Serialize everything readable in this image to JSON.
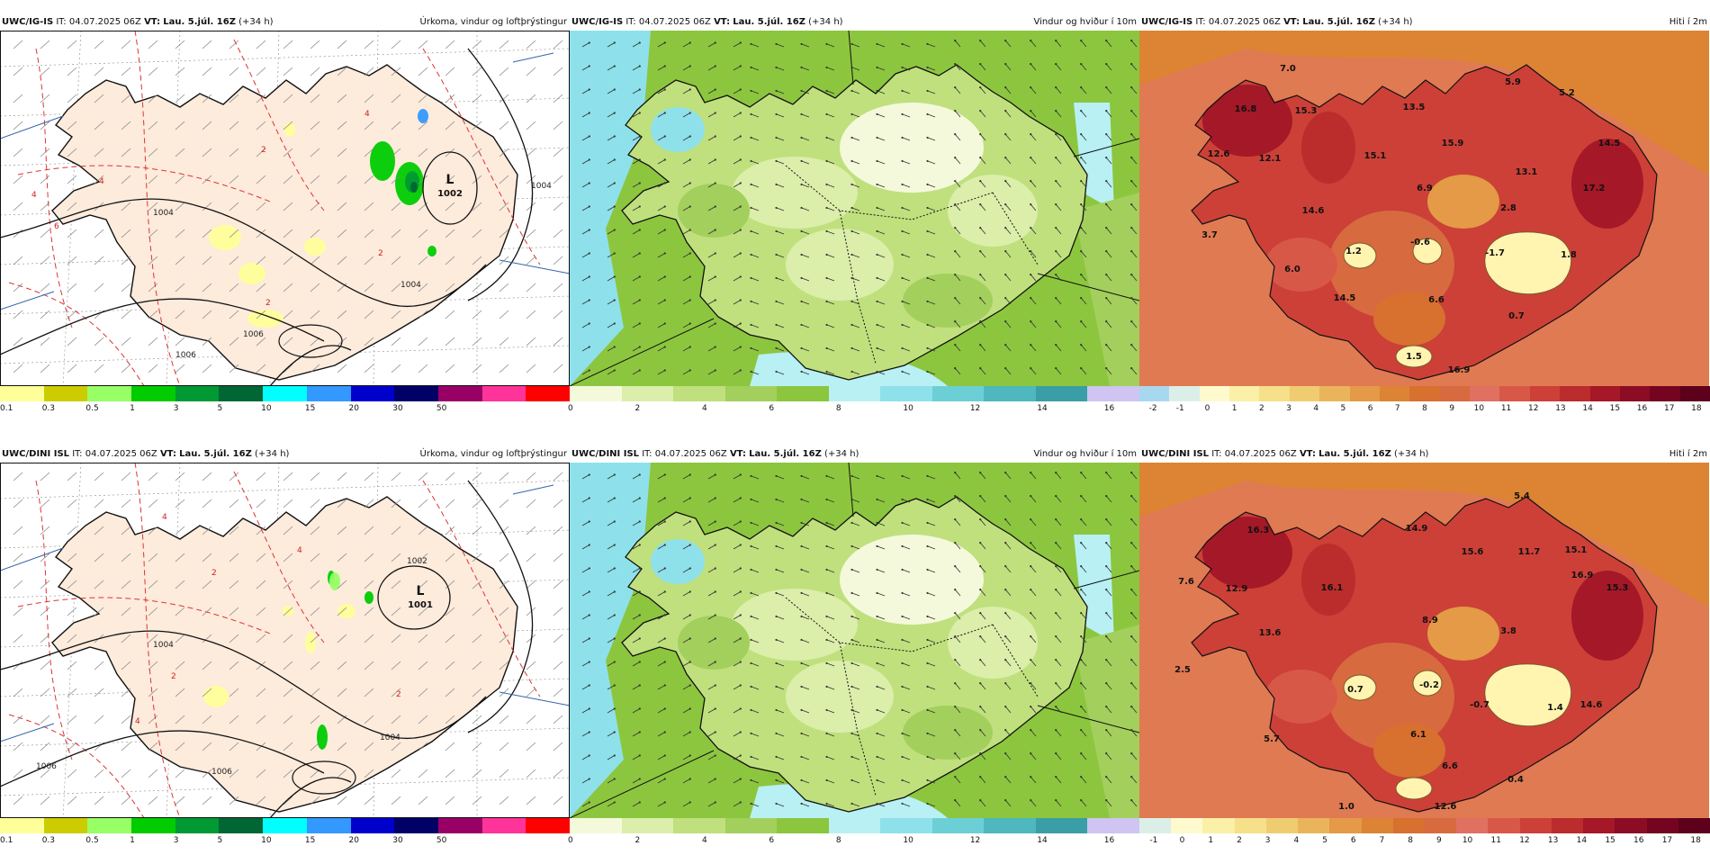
{
  "panels": [
    {
      "id": "p1",
      "model": "UWC/IG-IS",
      "it_label": "IT:",
      "it": "04.07.2025 06Z",
      "vt_label": "VT:",
      "vt": "Lau. 5.júl. 16Z",
      "lead": "(+34 h)",
      "title": "Úrkoma, vindur og loftþrýstingur",
      "map_kind": "precip",
      "scale": {
        "colors": [
          "#ffff99",
          "#cccc00",
          "#99ff66",
          "#00cc00",
          "#009933",
          "#006633",
          "#00ffff",
          "#3399ff",
          "#0000cc",
          "#000066",
          "#990066",
          "#ff3399",
          "#ff0000"
        ],
        "ticks": [
          "0.1",
          "0.3",
          "0.5",
          "1",
          "3",
          "5",
          "10",
          "15",
          "20",
          "30",
          "50"
        ]
      },
      "isobar_labels": [
        "1004",
        "1006",
        "1004",
        "1006",
        "1004"
      ],
      "lows": [
        {
          "letter": "L",
          "value": "1002"
        }
      ],
      "contour_labels": [
        "4",
        "2",
        "2",
        "4",
        "6",
        "4",
        "2"
      ],
      "values": []
    },
    {
      "id": "p2",
      "model": "UWC/IG-IS",
      "it_label": "IT:",
      "it": "04.07.2025 06Z",
      "vt_label": "VT:",
      "vt": "Lau. 5.júl. 16Z",
      "lead": "(+34 h)",
      "title": "Vindur og hviður í 10m",
      "map_kind": "wind",
      "scale": {
        "colors": [
          "#f4f9dc",
          "#dbeeaa",
          "#c0e07e",
          "#a3cf5c",
          "#8cc63f",
          "#b8f0f4",
          "#8ee1ea",
          "#6ccfd6",
          "#4fb8bf",
          "#3a9ea6",
          "#cfc4f2"
        ],
        "ticks": [
          "0",
          "2",
          "4",
          "6",
          "8",
          "10",
          "12",
          "14",
          "16"
        ]
      },
      "values": []
    },
    {
      "id": "p3",
      "model": "UWC/IG-IS",
      "it_label": "IT:",
      "it": "04.07.2025 06Z",
      "vt_label": "VT:",
      "vt": "Lau. 5.júl. 16Z",
      "lead": "(+34 h)",
      "title": "Hiti í 2m",
      "map_kind": "temp",
      "scale": {
        "colors": [
          "#a8d8f0",
          "#dceee8",
          "#fffacd",
          "#fbf0a8",
          "#f6e08a",
          "#f0cc70",
          "#eab55a",
          "#e49a46",
          "#dc8434",
          "#d87030",
          "#d86a40",
          "#e07060",
          "#d85848",
          "#cc4038",
          "#bb2c2c",
          "#a41828",
          "#8c0c24",
          "#740420",
          "#5c001c"
        ],
        "ticks": [
          "-2",
          "-1",
          "0",
          "1",
          "2",
          "3",
          "4",
          "5",
          "6",
          "7",
          "8",
          "9",
          "10",
          "11",
          "12",
          "13",
          "14",
          "15",
          "16",
          "17",
          "18"
        ]
      },
      "values": [
        "7.0",
        "5.9",
        "5.2",
        "16.8",
        "15.3",
        "13.5",
        "12.6",
        "12.1",
        "15.1",
        "15.9",
        "14.5",
        "13.1",
        "6.9",
        "17.2",
        "14.6",
        "2.8",
        "3.7",
        "1.2",
        "-0.6",
        "-1.7",
        "1.8",
        "6.0",
        "14.5",
        "6.6",
        "0.7",
        "1.5",
        "16.9"
      ]
    },
    {
      "id": "p4",
      "model": "UWC/DINI ISL",
      "it_label": "IT:",
      "it": "04.07.2025 06Z",
      "vt_label": "VT:",
      "vt": "Lau. 5.júl. 16Z",
      "lead": "(+34 h)",
      "title": "Úrkoma, vindur og loftþrýstingur",
      "map_kind": "precip",
      "scale": {
        "colors": [
          "#ffff99",
          "#cccc00",
          "#99ff66",
          "#00cc00",
          "#009933",
          "#006633",
          "#00ffff",
          "#3399ff",
          "#0000cc",
          "#000066",
          "#990066",
          "#ff3399",
          "#ff0000"
        ],
        "ticks": [
          "0.1",
          "0.3",
          "0.5",
          "1",
          "3",
          "5",
          "10",
          "15",
          "20",
          "30",
          "50"
        ]
      },
      "isobar_labels": [
        "1004",
        "1002",
        "1004",
        "1006",
        "1006"
      ],
      "lows": [
        {
          "letter": "L",
          "value": "1001"
        }
      ],
      "contour_labels": [
        "4",
        "2",
        "4",
        "2",
        "4",
        "2"
      ],
      "values": []
    },
    {
      "id": "p5",
      "model": "UWC/DINI ISL",
      "it_label": "IT:",
      "it": "04.07.2025 06Z",
      "vt_label": "VT:",
      "vt": "Lau. 5.júl. 16Z",
      "lead": "(+34 h)",
      "title": "Vindur og hviður í 10m",
      "map_kind": "wind",
      "scale": {
        "colors": [
          "#f4f9dc",
          "#dbeeaa",
          "#c0e07e",
          "#a3cf5c",
          "#8cc63f",
          "#b8f0f4",
          "#8ee1ea",
          "#6ccfd6",
          "#4fb8bf",
          "#3a9ea6",
          "#cfc4f2"
        ],
        "ticks": [
          "0",
          "2",
          "4",
          "6",
          "8",
          "10",
          "12",
          "14",
          "16"
        ]
      },
      "values": []
    },
    {
      "id": "p6",
      "model": "UWC/DINI ISL",
      "it_label": "IT:",
      "it": "04.07.2025 06Z",
      "vt_label": "VT:",
      "vt": "Lau. 5.júl. 16Z",
      "lead": "(+34 h)",
      "title": "Hiti í 2m",
      "map_kind": "temp",
      "scale": {
        "colors": [
          "#dceee8",
          "#fffacd",
          "#fbf0a8",
          "#f6e08a",
          "#f0cc70",
          "#eab55a",
          "#e49a46",
          "#dc8434",
          "#d87030",
          "#d86a40",
          "#e07060",
          "#d85848",
          "#cc4038",
          "#bb2c2c",
          "#a41828",
          "#8c0c24",
          "#740420",
          "#5c001c"
        ],
        "ticks": [
          "-1",
          "0",
          "1",
          "2",
          "3",
          "4",
          "5",
          "6",
          "7",
          "8",
          "9",
          "10",
          "11",
          "12",
          "13",
          "14",
          "15",
          "16",
          "17",
          "18"
        ]
      },
      "values": [
        "5.4",
        "16.3",
        "14.9",
        "15.6",
        "11.7",
        "15.1",
        "16.9",
        "7.6",
        "12.9",
        "16.1",
        "15.3",
        "8.9",
        "13.6",
        "3.8",
        "2.5",
        "0.7",
        "-0.2",
        "-0.7",
        "1.4",
        "14.6",
        "6.1",
        "5.7",
        "6.6",
        "0.4",
        "1.0",
        "12.6"
      ]
    }
  ]
}
